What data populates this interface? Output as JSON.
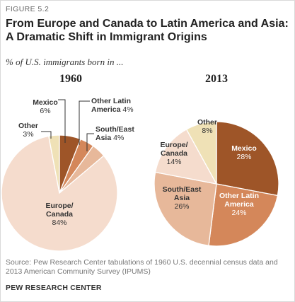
{
  "figure_label": "FIGURE 5.2",
  "title_line1": "From Europe and Canada to Latin America and Asia:",
  "title_line2": "A Dramatic Shift in Immigrant Origins",
  "subtitle": "% of U.S. immigrants born in ...",
  "source": "Source: Pew Research Center tabulations of 1960 U.S. decennial census data and 2013 American Community Survey (IPUMS)",
  "organization": "PEW RESEARCH CENTER",
  "chart_data": [
    {
      "type": "pie",
      "title": "1960",
      "slices": [
        {
          "label": "Mexico",
          "value": 6,
          "color": "#9e5528"
        },
        {
          "label": "Other Latin America",
          "value": 4,
          "color": "#d4875a"
        },
        {
          "label": "South/East Asia",
          "value": 4,
          "color": "#e7b89a"
        },
        {
          "label": "Europe/ Canada",
          "value": 84,
          "color": "#f5dccd"
        },
        {
          "label": "Other",
          "value": 3,
          "color": "#efe1b6"
        }
      ]
    },
    {
      "type": "pie",
      "title": "2013",
      "slices": [
        {
          "label": "Mexico",
          "value": 28,
          "color": "#9e5528"
        },
        {
          "label": "Other Latin America",
          "value": 24,
          "color": "#d4875a"
        },
        {
          "label": "South/East Asia",
          "value": 26,
          "color": "#e7b89a"
        },
        {
          "label": "Europe/ Canada",
          "value": 14,
          "color": "#f5dccd"
        },
        {
          "label": "Other",
          "value": 8,
          "color": "#efe1b6"
        }
      ]
    }
  ]
}
